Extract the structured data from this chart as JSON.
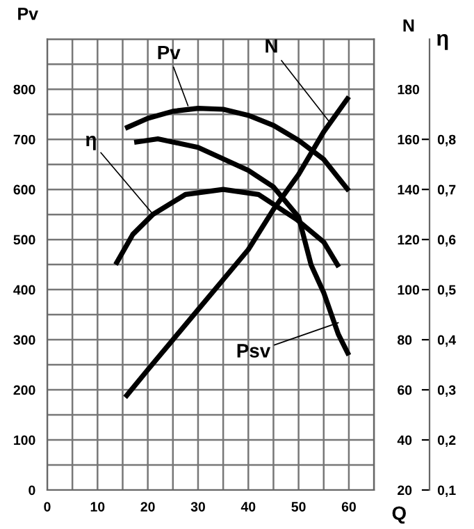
{
  "chart_data": {
    "type": "line",
    "ylabel": "Pv",
    "y2label": "N",
    "y3label": "η",
    "xlabel": "Q",
    "xlim": [
      0,
      65
    ],
    "xticks": [
      0,
      {
        "value": 5,
        "label": null
      },
      10,
      {
        "value": 15,
        "label": null
      },
      20,
      {
        "value": 25,
        "label": null
      },
      30,
      {
        "value": 35,
        "label": null
      },
      40,
      {
        "value": 45,
        "label": null
      },
      50,
      {
        "value": 55,
        "label": null
      },
      60,
      {
        "value": 65,
        "label": null
      }
    ],
    "ylim": [
      0,
      900
    ],
    "yticks": [
      0,
      {
        "value": 50,
        "label": null
      },
      100,
      {
        "value": 150,
        "label": null
      },
      200,
      {
        "value": 250,
        "label": null
      },
      300,
      {
        "value": 350,
        "label": null
      },
      400,
      {
        "value": 450,
        "label": null
      },
      500,
      {
        "value": 550,
        "label": null
      },
      600,
      {
        "value": 650,
        "label": null
      },
      700,
      {
        "value": 750,
        "label": null
      },
      800,
      {
        "value": 850,
        "label": null
      },
      {
        "value": 900,
        "label": null
      }
    ],
    "y2lim": [
      20,
      200
    ],
    "y2ticks": [
      20,
      40,
      60,
      80,
      100,
      120,
      140,
      160,
      180
    ],
    "y3lim": [
      0.1,
      1.0
    ],
    "y3ticks": [
      {
        "value": 0.1,
        "label": "0,1"
      },
      {
        "value": 0.2,
        "label": "0,2"
      },
      {
        "value": 0.3,
        "label": "0,3"
      },
      {
        "value": 0.4,
        "label": "0,4"
      },
      {
        "value": 0.5,
        "label": "0,5"
      },
      {
        "value": 0.6,
        "label": "0,6"
      },
      {
        "value": 0.7,
        "label": "0,7"
      },
      {
        "value": 0.8,
        "label": "0,8"
      }
    ],
    "grid": true,
    "marker": "none",
    "line_style": "solid",
    "series": [
      {
        "color": "#000000",
        "x": [
          15.5,
          20,
          25,
          30,
          35,
          40,
          45,
          50,
          55,
          60
        ],
        "values": [
          722,
          742,
          756,
          762,
          760,
          748,
          728,
          698,
          660,
          597
        ]
      },
      {
        "color": "#000000",
        "x": [
          17.3,
          22,
          30,
          40,
          45,
          50,
          52.5,
          55,
          57.9,
          60
        ],
        "values": [
          694,
          701,
          684,
          638,
          605,
          545,
          449,
          394,
          311,
          269
        ]
      },
      {
        "color": "#000000",
        "axis": "y3",
        "x": [
          13.6,
          17,
          21,
          27.5,
          35,
          42,
          49.6,
          55,
          58
        ],
        "values": [
          0.55,
          0.61,
          0.65,
          0.69,
          0.7,
          0.69,
          0.64,
          0.595,
          0.545
        ]
      },
      {
        "color": "#000000",
        "axis": "y2",
        "x": [
          15.5,
          20,
          25,
          30,
          35,
          40,
          45,
          50,
          55,
          60
        ],
        "values": [
          57,
          68,
          80,
          92,
          104,
          116,
          132,
          146,
          163,
          177
        ]
      }
    ],
    "annotations": [
      {
        "text": "Pv",
        "x": 28,
        "y": 767
      },
      {
        "text": "N",
        "x": 56.5,
        "y": 730
      },
      {
        "text": "η",
        "x": 21,
        "y": 551
      },
      {
        "text": "Psv",
        "x": 57.9,
        "y": 334
      }
    ]
  }
}
